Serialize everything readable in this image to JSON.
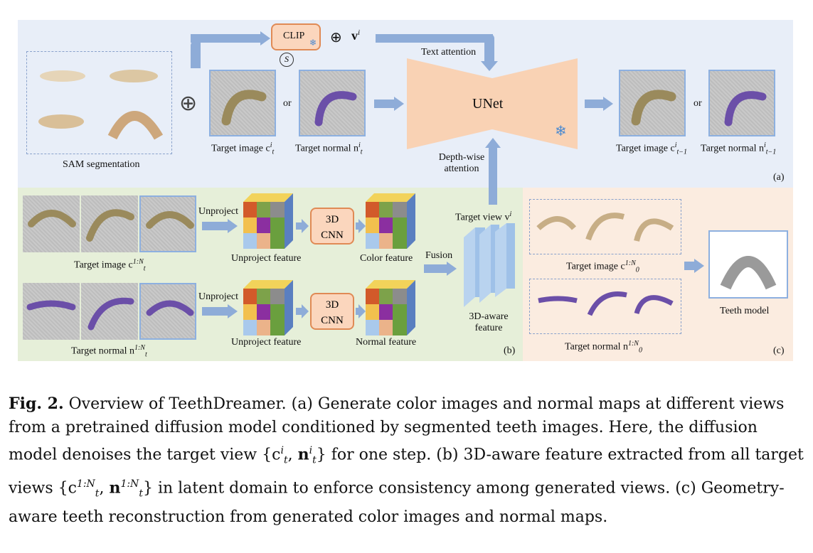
{
  "labels": {
    "sam_segmentation": "SAM segmentation",
    "clip": "CLIP",
    "v_i": "v",
    "v_i_sup": "i",
    "oplus": "⊕",
    "s_symbol": "S",
    "or_1": "or",
    "or_2": "or",
    "target_image_ct": "Target image c",
    "target_normal_nt": "Target normal n",
    "text_attention": "Text attention",
    "unet": "UNet",
    "depthwise_attention": "Depth-wise attention",
    "target_image_ct1": "Target image c",
    "target_normal_nt1": "Target normal n",
    "panel_a": "(a)",
    "panel_b": "(b)",
    "panel_c": "(c)",
    "unproject_1": "Unproject",
    "unproject_2": "Unproject",
    "cnn_1": "3D CNN",
    "cnn_2": "3D CNN",
    "unproject_feature_1": "Unproject feature",
    "unproject_feature_2": "Unproject feature",
    "color_feature": "Color feature",
    "normal_feature": "Normal feature",
    "fusion": "Fusion",
    "target_view_vi": "Target view v",
    "aware_feature": "3D-aware feature",
    "target_image_c1N": "Target image c",
    "target_normal_n1N": "Target normal n",
    "target_image_c0": "Target image c",
    "target_normal_n0": "Target normal n",
    "teeth_model": "Teeth model"
  },
  "caption": {
    "fig": "Fig. 2.",
    "text": " Overview of TeethDreamer. (a) Generate color images and normal maps at different views from a pretrained diffusion model conditioned by segmented teeth images. Here, the diffusion model denoises the target view {c",
    "text2": "} for one step. (b) 3D-aware feature extracted from all target views {c",
    "text3": "} in latent domain to enforce consistency among generated views. (c) Geometry-aware teeth reconstruction from generated color images and normal maps."
  },
  "colors": {
    "panel_a_bg": "#e8eef8",
    "panel_b_bg": "#e6efd9",
    "panel_c_bg": "#fbece0",
    "arrow": "#8eacd8",
    "unet": "#f9d2b4"
  }
}
